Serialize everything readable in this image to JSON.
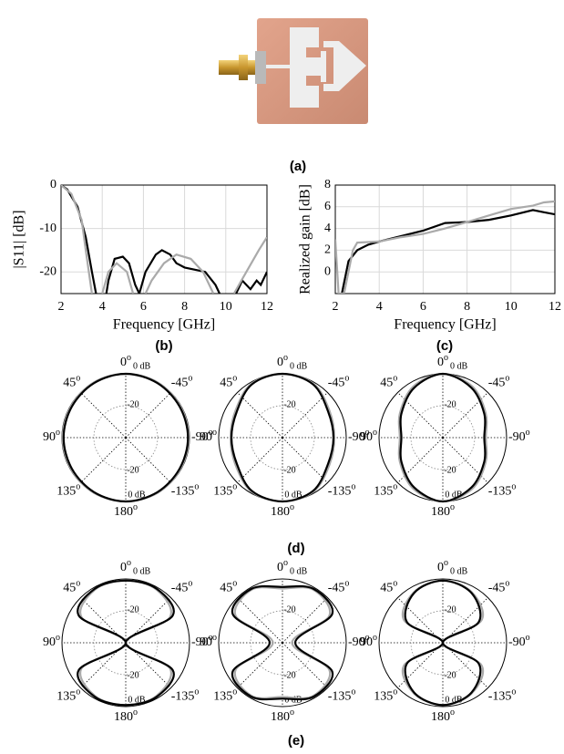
{
  "captions": [
    "(a)",
    "(b)",
    "(c)",
    "(d)",
    "(e)"
  ],
  "chart_data": [
    {
      "type": "line",
      "xlabel": "Frequency [GHz]",
      "ylabel": "|S11| [dB]",
      "xlim": [
        2,
        12
      ],
      "xticks": [
        2,
        4,
        6,
        8,
        10,
        12
      ],
      "ylim": [
        -25,
        0
      ],
      "yticks": [
        0,
        -10,
        -20
      ],
      "grid": true,
      "series": [
        {
          "color": "#000000",
          "x": [
            2,
            2.3,
            2.8,
            3.2,
            3.5,
            3.7,
            4.0,
            4.2,
            4.3,
            4.6,
            5.0,
            5.3,
            5.6,
            5.8,
            6.1,
            6.6,
            6.9,
            7.3,
            7.6,
            8.0,
            8.5,
            9.0,
            9.5,
            9.7,
            10.0,
            10.5,
            10.8,
            11.2,
            11.5,
            11.7,
            12
          ],
          "values": [
            0,
            -1,
            -5,
            -12,
            -20,
            -25,
            null,
            -25,
            -22,
            -17,
            -16.5,
            -18,
            -23,
            -25,
            -20,
            -16,
            -15,
            -16,
            -18,
            -19,
            -19.5,
            -20,
            -23,
            -25,
            null,
            -25,
            -22,
            -24,
            -22,
            -23,
            -20
          ]
        },
        {
          "color": "#aaaaaa",
          "x": [
            2,
            2.5,
            3.0,
            3.2,
            3.5,
            3.8,
            4.0,
            4.3,
            4.7,
            5.2,
            5.5,
            5.9,
            6.1,
            6.4,
            7.0,
            7.6,
            8.3,
            8.9,
            9.4,
            9.9,
            10.4,
            11.0,
            11.6,
            12
          ],
          "values": [
            0,
            -2,
            -8,
            -15,
            -25,
            null,
            -25,
            -20,
            -18,
            -20,
            -25,
            null,
            -25,
            -22,
            -18,
            -16,
            -17,
            -20,
            -25,
            null,
            -25,
            -20,
            -15,
            -12
          ]
        }
      ]
    },
    {
      "type": "line",
      "xlabel": "Frequency [GHz]",
      "ylabel": "Realized gain [dB]",
      "xlim": [
        2,
        12
      ],
      "xticks": [
        2,
        4,
        6,
        8,
        10,
        12
      ],
      "ylim": [
        -2,
        8
      ],
      "yticks": [
        0,
        2,
        4,
        6,
        8
      ],
      "grid": true,
      "series": [
        {
          "color": "#000000",
          "x": [
            2.3,
            2.6,
            3,
            3.5,
            4,
            5,
            6,
            7,
            8,
            9,
            10,
            11,
            11.5,
            12
          ],
          "values": [
            -2,
            1,
            2,
            2.5,
            2.8,
            3.3,
            3.8,
            4.5,
            4.6,
            4.8,
            5.2,
            5.7,
            5.5,
            5.3
          ]
        },
        {
          "color": "#aaaaaa",
          "x": [
            2,
            2.15,
            2.4,
            2.8,
            3,
            4,
            5,
            6,
            7,
            8,
            9,
            10,
            11,
            11.5,
            12
          ],
          "values": [
            3,
            -2,
            -2,
            2,
            2.7,
            2.8,
            3.2,
            3.5,
            4.0,
            4.6,
            5.2,
            5.8,
            6.1,
            6.4,
            6.5
          ]
        }
      ]
    },
    {
      "type": "polar",
      "rlim": [
        -40,
        0
      ],
      "rticks": [
        {
          "value": 0,
          "label": "0 dB"
        },
        {
          "value": -20,
          "label": "-20"
        }
      ],
      "angle_ticks": [
        0,
        45,
        -45,
        90,
        -90,
        135,
        -135,
        180
      ],
      "degree_mark": "o",
      "theta": [
        0,
        30,
        60,
        90,
        120,
        150,
        180,
        -150,
        -120,
        -90,
        -60,
        -30
      ],
      "series": [
        {
          "color": "#000000",
          "values": [
            0,
            -0.5,
            -1,
            -1,
            -1,
            -0.5,
            0,
            -0.5,
            -1,
            -1,
            -1,
            -0.5
          ]
        },
        {
          "color": "#aaaaaa",
          "values": [
            0,
            0,
            -0.5,
            -0.5,
            -0.5,
            0,
            0,
            0,
            -0.5,
            -0.5,
            -0.5,
            0
          ]
        }
      ]
    },
    {
      "type": "polar",
      "rlim": [
        -40,
        0
      ],
      "rticks": [
        {
          "value": 0,
          "label": "0 dB"
        },
        {
          "value": -20,
          "label": "-20"
        }
      ],
      "angle_ticks": [
        0,
        45,
        -45,
        90,
        -90,
        135,
        -135,
        180
      ],
      "degree_mark": "o",
      "theta": [
        0,
        30,
        60,
        90,
        120,
        150,
        180,
        -150,
        -120,
        -90,
        -60,
        -30
      ],
      "series": [
        {
          "color": "#000000",
          "values": [
            0,
            -1.5,
            -7,
            -8,
            -7,
            -1.5,
            0,
            -1.5,
            -7,
            -8,
            -7,
            -1.5
          ]
        },
        {
          "color": "#aaaaaa",
          "values": [
            0,
            -1,
            -6,
            -7.5,
            -6,
            -1,
            0,
            -1,
            -6,
            -7.5,
            -6,
            -1
          ]
        }
      ]
    },
    {
      "type": "polar",
      "rlim": [
        -40,
        0
      ],
      "rticks": [
        {
          "value": 0,
          "label": "0 dB"
        },
        {
          "value": -20,
          "label": "-20"
        }
      ],
      "angle_ticks": [
        0,
        45,
        -45,
        90,
        -90,
        135,
        -135,
        180
      ],
      "degree_mark": "o",
      "theta": [
        0,
        30,
        60,
        90,
        120,
        150,
        180,
        -150,
        -120,
        -90,
        -60,
        -30
      ],
      "series": [
        {
          "color": "#000000",
          "values": [
            0,
            -4,
            -10,
            -14,
            -10,
            -4,
            0,
            -4,
            -10,
            -14,
            -10,
            -4
          ]
        },
        {
          "color": "#aaaaaa",
          "values": [
            0,
            -3,
            -9,
            -13,
            -9,
            -3,
            0,
            -3,
            -9,
            -13,
            -9,
            -3
          ]
        }
      ]
    },
    {
      "type": "polar",
      "rlim": [
        -40,
        0
      ],
      "rticks": [
        {
          "value": 0,
          "label": "0 dB"
        },
        {
          "value": -20,
          "label": "-20"
        }
      ],
      "angle_ticks": [
        0,
        45,
        -45,
        90,
        -90,
        135,
        -135,
        180
      ],
      "degree_mark": "o",
      "theta": [
        0,
        30,
        60,
        90,
        120,
        150,
        180,
        -150,
        -120,
        -90,
        -60,
        -30
      ],
      "series": [
        {
          "color": "#000000",
          "values": [
            -1,
            -1,
            -6,
            -40,
            -6,
            -1,
            -1,
            -1,
            -6,
            -40,
            -6,
            -1
          ]
        },
        {
          "color": "#aaaaaa",
          "values": [
            -1,
            -1.5,
            -8,
            -40,
            -8,
            -1.5,
            -1,
            -1.5,
            -8,
            -40,
            -8,
            -1.5
          ]
        }
      ]
    },
    {
      "type": "polar",
      "rlim": [
        -40,
        0
      ],
      "rticks": [
        {
          "value": 0,
          "label": "0 dB"
        },
        {
          "value": -20,
          "label": "-20"
        }
      ],
      "angle_ticks": [
        0,
        45,
        -45,
        90,
        -90,
        135,
        -135,
        180
      ],
      "degree_mark": "o",
      "theta": [
        0,
        30,
        60,
        90,
        120,
        150,
        180,
        -150,
        -120,
        -90,
        -60,
        -30
      ],
      "series": [
        {
          "color": "#000000",
          "values": [
            -5,
            -1,
            -4,
            -32,
            -4,
            -1,
            -5,
            -1,
            -4,
            -32,
            -4,
            -1
          ]
        },
        {
          "color": "#aaaaaa",
          "values": [
            -6,
            -1.5,
            -6,
            -34,
            -6,
            -1.5,
            -6,
            -1.5,
            -6,
            -34,
            -6,
            -1.5
          ]
        }
      ]
    },
    {
      "type": "polar",
      "rlim": [
        -40,
        0
      ],
      "rticks": [
        {
          "value": 0,
          "label": "0 dB"
        },
        {
          "value": -20,
          "label": "-20"
        }
      ],
      "angle_ticks": [
        0,
        45,
        -45,
        90,
        -90,
        135,
        -135,
        180
      ],
      "degree_mark": "o",
      "theta": [
        0,
        30,
        60,
        90,
        120,
        150,
        180,
        -150,
        -120,
        -90,
        -60,
        -30
      ],
      "series": [
        {
          "color": "#000000",
          "values": [
            -1,
            -4,
            -14,
            -40,
            -14,
            -4,
            -1,
            -4,
            -14,
            -40,
            -14,
            -4
          ]
        },
        {
          "color": "#aaaaaa",
          "values": [
            -1,
            -3.5,
            -12,
            -40,
            -12,
            -3.5,
            -1,
            -3.5,
            -12,
            -40,
            -12,
            -3.5
          ]
        }
      ]
    }
  ]
}
